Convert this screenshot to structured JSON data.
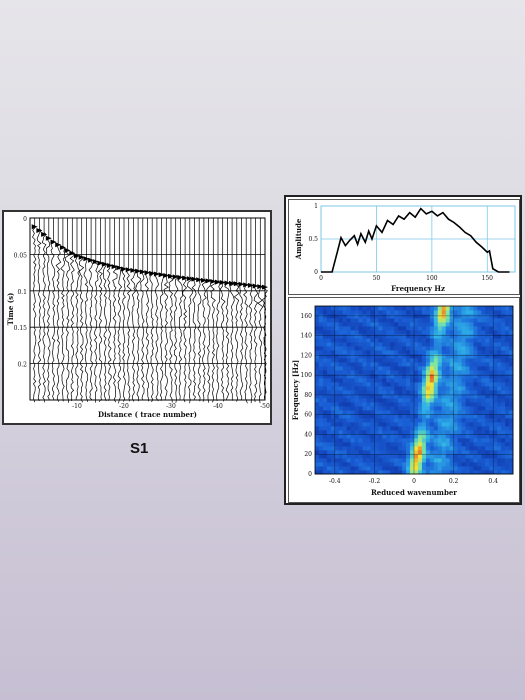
{
  "slide_label": "S1",
  "chart_data": [
    {
      "type": "line",
      "xlabel": "Distance ( trace number)",
      "ylabel": "Time (s)",
      "xticks": [
        "-10",
        "-20",
        "-30",
        "-40",
        "-50"
      ],
      "yticks": [
        "0",
        "0.05",
        "0.1",
        "0.15",
        "0.2"
      ],
      "xlim": [
        0,
        -50
      ],
      "ylim": [
        0,
        0.25
      ],
      "series": [
        {
          "x": [
            -1,
            -5,
            -10,
            -15,
            -20,
            -25,
            -30,
            -35,
            -40,
            -45,
            -50
          ],
          "values": [
            0.012,
            0.033,
            0.052,
            0.062,
            0.07,
            0.075,
            0.08,
            0.084,
            0.088,
            0.091,
            0.095
          ]
        }
      ]
    },
    {
      "type": "line",
      "xlabel": "Frequency Hz",
      "ylabel": "Amplitude",
      "xticks": [
        "0",
        "50",
        "100",
        "150"
      ],
      "yticks": [
        "0",
        "0.5",
        "1"
      ],
      "xlim": [
        0,
        175
      ],
      "ylim": [
        0,
        1
      ],
      "series": [
        {
          "x": [
            0,
            10,
            15,
            18,
            22,
            26,
            30,
            33,
            36,
            40,
            43,
            46,
            50,
            55,
            60,
            65,
            70,
            75,
            80,
            85,
            90,
            95,
            100,
            105,
            110,
            115,
            120,
            125,
            130,
            135,
            140,
            145,
            150,
            152,
            155,
            160,
            170
          ],
          "values": [
            0,
            0,
            0.32,
            0.52,
            0.4,
            0.48,
            0.55,
            0.42,
            0.58,
            0.45,
            0.62,
            0.5,
            0.7,
            0.6,
            0.78,
            0.72,
            0.85,
            0.8,
            0.9,
            0.83,
            0.96,
            0.88,
            0.92,
            0.85,
            0.9,
            0.8,
            0.75,
            0.68,
            0.6,
            0.55,
            0.45,
            0.38,
            0.3,
            0.32,
            0.05,
            0,
            0
          ]
        }
      ]
    },
    {
      "type": "heatmap",
      "xlabel": "Reduced wavenumber",
      "ylabel": "Frequency [Hz]",
      "xticks": [
        "-0.4",
        "-0.2",
        "0",
        "0.2",
        "0.4"
      ],
      "yticks": [
        "0",
        "20",
        "40",
        "60",
        "80",
        "100",
        "120",
        "140",
        "160"
      ],
      "xlim": [
        -0.5,
        0.5
      ],
      "ylim": [
        0,
        170
      ],
      "colormap": [
        "#0b2a9a",
        "#1a5fd6",
        "#2fb0e8",
        "#7fe6a0",
        "#f2e23a",
        "#e33a1c"
      ]
    }
  ]
}
